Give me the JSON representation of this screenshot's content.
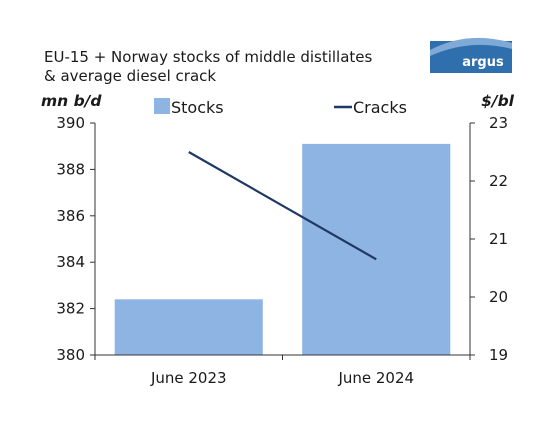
{
  "chart_data": {
    "type": "bar+line",
    "title_lines": [
      "EU-15 + Norway stocks of middle distillates",
      "& average diesel crack"
    ],
    "categories": [
      "June 2023",
      "June 2024"
    ],
    "y_left": {
      "label": "mn b/d",
      "range": [
        380,
        390
      ],
      "ticks": [
        "380",
        "382",
        "384",
        "386",
        "388",
        "390"
      ]
    },
    "y_right": {
      "label": "$/bl",
      "range": [
        19,
        23
      ],
      "ticks": [
        "19",
        "20",
        "21",
        "22",
        "23"
      ]
    },
    "series": [
      {
        "name": "Stocks",
        "type": "bar",
        "axis": "left",
        "values": [
          382.4,
          389.1
        ],
        "color": "#8eb4e3"
      },
      {
        "name": "Cracks",
        "type": "line",
        "axis": "right",
        "values": [
          22.5,
          20.65
        ],
        "color": "#1f3864"
      }
    ],
    "grid": false,
    "legend_placement": "top"
  },
  "logo": {
    "text": "argus",
    "color": "#2f6fad"
  }
}
